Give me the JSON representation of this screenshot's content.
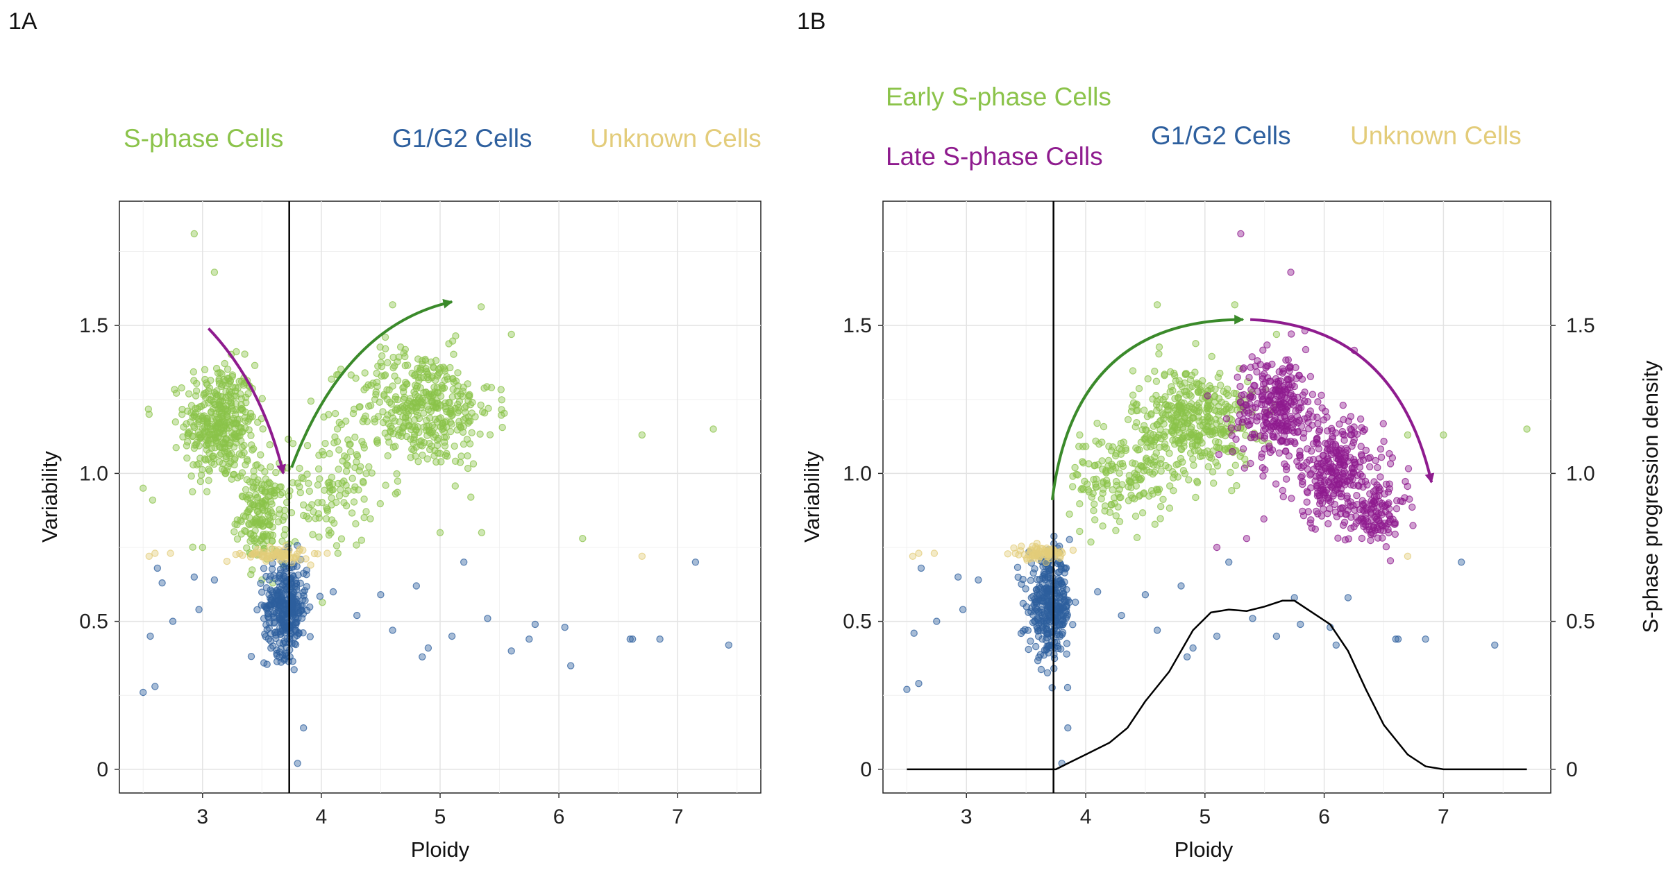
{
  "colors": {
    "s_phase": "#8bc34a",
    "early_s": "#8bc34a",
    "late_s": "#8e1b8e",
    "g1g2": "#2d5f9e",
    "unknown": "#e3cc7a",
    "arrow_green": "#3a8a2a",
    "arrow_purple": "#8e1b8e"
  },
  "chart_data": [
    {
      "panel": "1A",
      "type": "scatter",
      "xlabel": "Ploidy",
      "ylabel": "Variability",
      "xlim": [
        2.3,
        7.7
      ],
      "ylim": [
        -0.08,
        1.92
      ],
      "xticks": [
        3,
        4,
        5,
        6,
        7
      ],
      "yticks": [
        0,
        0.5,
        1.0,
        1.5
      ],
      "ytick_labels": [
        "0",
        "0.5",
        "1.0",
        "1.5"
      ],
      "grid": true,
      "vline_x": 3.73,
      "legend_items": [
        {
          "label": "S-phase Cells",
          "color": "#8bc34a"
        },
        {
          "label": "G1/G2 Cells",
          "color": "#2d5f9e"
        },
        {
          "label": "Unknown Cells",
          "color": "#e3cc7a"
        }
      ],
      "series": [
        {
          "name": "S-phase Cells",
          "color": "#8bc34a",
          "clusters": [
            {
              "cx": 3.15,
              "cy": 1.17,
              "sx": 0.15,
              "sy": 0.1,
              "n": 380
            },
            {
              "cx": 3.5,
              "cy": 0.86,
              "sx": 0.1,
              "sy": 0.08,
              "n": 180
            },
            {
              "cx": 4.1,
              "cy": 0.95,
              "sx": 0.18,
              "sy": 0.1,
              "n": 120
            },
            {
              "cx": 4.85,
              "cy": 1.22,
              "sx": 0.3,
              "sy": 0.1,
              "n": 420
            }
          ],
          "points": [
            [
              2.93,
              1.81
            ],
            [
              3.1,
              1.68
            ],
            [
              2.5,
              0.95
            ],
            [
              2.58,
              0.91
            ],
            [
              2.55,
              1.2
            ],
            [
              4.6,
              1.57
            ],
            [
              5.6,
              1.47
            ],
            [
              6.7,
              1.13
            ],
            [
              7.3,
              1.15
            ],
            [
              6.2,
              0.78
            ],
            [
              5.35,
              0.8
            ],
            [
              3.0,
              0.75
            ],
            [
              5.0,
              0.8
            ]
          ]
        },
        {
          "name": "G1/G2 Cells",
          "color": "#2d5f9e",
          "clusters": [
            {
              "cx": 3.7,
              "cy": 0.55,
              "sx": 0.09,
              "sy": 0.08,
              "n": 340
            }
          ],
          "points": [
            [
              2.5,
              0.26
            ],
            [
              2.6,
              0.28
            ],
            [
              2.56,
              0.45
            ],
            [
              2.62,
              0.68
            ],
            [
              2.66,
              0.63
            ],
            [
              2.75,
              0.5
            ],
            [
              2.93,
              0.65
            ],
            [
              2.97,
              0.54
            ],
            [
              3.1,
              0.64
            ],
            [
              3.85,
              0.14
            ],
            [
              3.8,
              0.02
            ],
            [
              4.3,
              0.52
            ],
            [
              4.6,
              0.47
            ],
            [
              4.85,
              0.38
            ],
            [
              4.9,
              0.41
            ],
            [
              5.1,
              0.45
            ],
            [
              5.2,
              0.7
            ],
            [
              5.4,
              0.51
            ],
            [
              5.6,
              0.4
            ],
            [
              5.75,
              0.44
            ],
            [
              5.8,
              0.49
            ],
            [
              6.1,
              0.35
            ],
            [
              6.05,
              0.48
            ],
            [
              6.6,
              0.44
            ],
            [
              6.62,
              0.44
            ],
            [
              6.85,
              0.44
            ],
            [
              7.15,
              0.7
            ],
            [
              7.43,
              0.42
            ],
            [
              4.1,
              0.6
            ],
            [
              4.5,
              0.59
            ],
            [
              4.8,
              0.62
            ]
          ]
        },
        {
          "name": "Unknown Cells",
          "color": "#e3cc7a",
          "clusters": [
            {
              "cx": 3.62,
              "cy": 0.725,
              "sx": 0.14,
              "sy": 0.012,
              "n": 70
            }
          ],
          "points": [
            [
              2.55,
              0.72
            ],
            [
              2.6,
              0.73
            ],
            [
              2.73,
              0.73
            ],
            [
              6.7,
              0.72
            ],
            [
              4.05,
              0.73
            ]
          ]
        }
      ],
      "arrows": [
        {
          "color": "#8e1b8e",
          "from": [
            3.05,
            1.49
          ],
          "ctrl": [
            3.5,
            1.3
          ],
          "to": [
            3.68,
            1.0
          ]
        },
        {
          "color": "#3a8a2a",
          "from": [
            3.75,
            1.02
          ],
          "ctrl": [
            4.2,
            1.5
          ],
          "to": [
            5.1,
            1.58
          ]
        }
      ]
    },
    {
      "panel": "1B",
      "type": "scatter",
      "xlabel": "Ploidy",
      "ylabel": "Variability",
      "ylabel_right": "S-phase progression density",
      "xlim": [
        2.3,
        7.9
      ],
      "ylim": [
        -0.08,
        1.92
      ],
      "xticks": [
        3,
        4,
        5,
        6,
        7
      ],
      "yticks": [
        0,
        0.5,
        1.0,
        1.5
      ],
      "ytick_labels": [
        "0",
        "0.5",
        "1.0",
        "1.5"
      ],
      "grid": true,
      "vline_x": 3.73,
      "legend_items": [
        {
          "label": "Early S-phase Cells",
          "color": "#8bc34a"
        },
        {
          "label": "Late S-phase Cells",
          "color": "#8e1b8e"
        },
        {
          "label": "G1/G2 Cells",
          "color": "#2d5f9e"
        },
        {
          "label": "Unknown Cells",
          "color": "#e3cc7a"
        }
      ],
      "series": [
        {
          "name": "Early S-phase Cells",
          "color": "#8bc34a",
          "clusters": [
            {
              "cx": 4.3,
              "cy": 0.98,
              "sx": 0.22,
              "sy": 0.08,
              "n": 160
            },
            {
              "cx": 4.9,
              "cy": 1.18,
              "sx": 0.25,
              "sy": 0.09,
              "n": 420
            }
          ],
          "points": [
            [
              5.25,
              1.57
            ],
            [
              5.6,
              1.47
            ],
            [
              7.0,
              1.13
            ],
            [
              7.7,
              1.15
            ],
            [
              6.7,
              1.13
            ],
            [
              4.6,
              1.57
            ],
            [
              3.95,
              1.13
            ]
          ]
        },
        {
          "name": "Late S-phase Cells",
          "color": "#8e1b8e",
          "clusters": [
            {
              "cx": 5.6,
              "cy": 1.22,
              "sx": 0.18,
              "sy": 0.09,
              "n": 300
            },
            {
              "cx": 6.1,
              "cy": 1.0,
              "sx": 0.2,
              "sy": 0.09,
              "n": 300
            },
            {
              "cx": 6.45,
              "cy": 0.86,
              "sx": 0.12,
              "sy": 0.05,
              "n": 110
            }
          ],
          "points": [
            [
              5.3,
              1.81
            ],
            [
              5.72,
              1.68
            ],
            [
              5.1,
              0.75
            ],
            [
              5.35,
              0.78
            ],
            [
              6.2,
              0.9
            ]
          ]
        },
        {
          "name": "G1/G2 Cells",
          "color": "#2d5f9e",
          "clusters": [
            {
              "cx": 3.7,
              "cy": 0.55,
              "sx": 0.09,
              "sy": 0.08,
              "n": 340
            }
          ],
          "points": [
            [
              2.5,
              0.27
            ],
            [
              2.6,
              0.29
            ],
            [
              2.56,
              0.46
            ],
            [
              2.62,
              0.68
            ],
            [
              2.75,
              0.5
            ],
            [
              2.93,
              0.65
            ],
            [
              2.97,
              0.54
            ],
            [
              3.1,
              0.64
            ],
            [
              3.85,
              0.14
            ],
            [
              3.8,
              0.02
            ],
            [
              4.3,
              0.52
            ],
            [
              4.6,
              0.47
            ],
            [
              4.85,
              0.38
            ],
            [
              4.9,
              0.41
            ],
            [
              5.1,
              0.45
            ],
            [
              5.2,
              0.7
            ],
            [
              5.4,
              0.51
            ],
            [
              5.6,
              0.45
            ],
            [
              5.75,
              0.58
            ],
            [
              5.8,
              0.49
            ],
            [
              6.1,
              0.42
            ],
            [
              6.05,
              0.48
            ],
            [
              6.2,
              0.58
            ],
            [
              6.6,
              0.44
            ],
            [
              6.62,
              0.44
            ],
            [
              6.85,
              0.44
            ],
            [
              7.15,
              0.7
            ],
            [
              7.43,
              0.42
            ],
            [
              4.1,
              0.6
            ],
            [
              4.5,
              0.59
            ],
            [
              4.8,
              0.62
            ]
          ]
        },
        {
          "name": "Unknown Cells",
          "color": "#e3cc7a",
          "clusters": [
            {
              "cx": 3.62,
              "cy": 0.73,
              "sx": 0.12,
              "sy": 0.012,
              "n": 70
            }
          ],
          "points": [
            [
              2.55,
              0.72
            ],
            [
              2.6,
              0.73
            ],
            [
              2.73,
              0.73
            ],
            [
              6.7,
              0.72
            ]
          ]
        }
      ],
      "density_curve": {
        "x": [
          2.5,
          3.5,
          3.75,
          3.85,
          4.0,
          4.2,
          4.35,
          4.5,
          4.7,
          4.9,
          5.05,
          5.2,
          5.35,
          5.5,
          5.65,
          5.75,
          5.9,
          6.05,
          6.2,
          6.35,
          6.5,
          6.7,
          6.85,
          7.0,
          7.7
        ],
        "y": [
          0.0,
          0.0,
          0.0,
          0.02,
          0.05,
          0.09,
          0.14,
          0.23,
          0.33,
          0.47,
          0.53,
          0.54,
          0.535,
          0.55,
          0.57,
          0.57,
          0.53,
          0.49,
          0.4,
          0.27,
          0.15,
          0.05,
          0.01,
          0.0,
          0.0
        ]
      },
      "arrows": [
        {
          "color": "#3a8a2a",
          "from": [
            3.72,
            0.91
          ],
          "ctrl": [
            3.9,
            1.52
          ],
          "to": [
            5.32,
            1.52
          ]
        },
        {
          "color": "#8e1b8e",
          "from": [
            5.38,
            1.52
          ],
          "ctrl": [
            6.6,
            1.5
          ],
          "to": [
            6.9,
            0.97
          ]
        }
      ]
    }
  ]
}
